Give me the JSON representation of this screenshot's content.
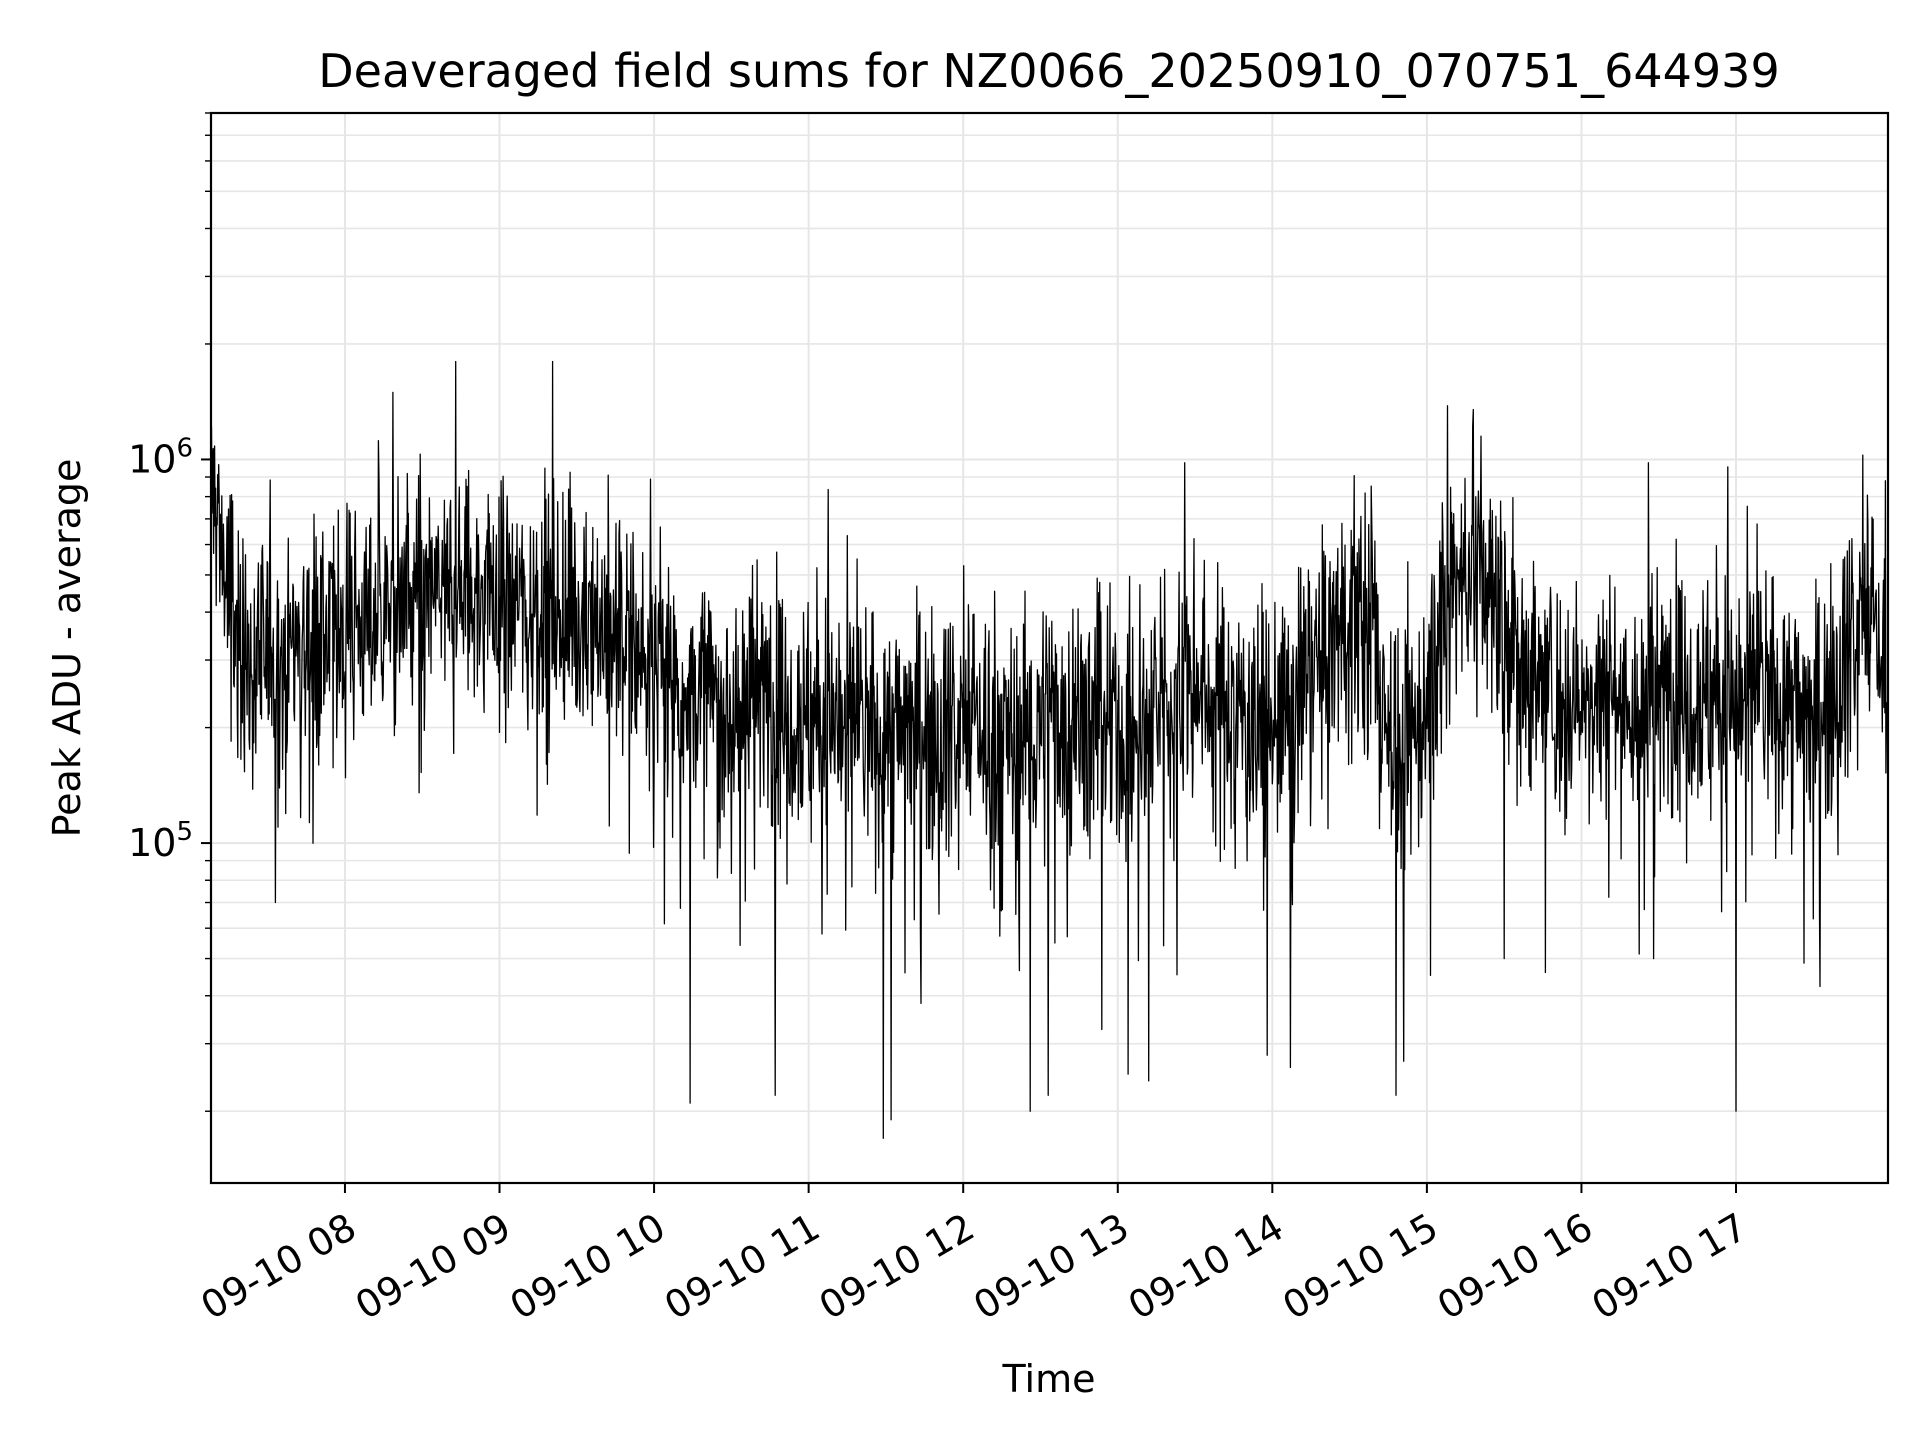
{
  "chart_data": {
    "type": "line",
    "title": "Deaveraged field sums for NZ0066_20250910_070751_644939",
    "xlabel": "Time",
    "ylabel": "Peak ADU - average",
    "yscale": "log",
    "ylim": [
      13000,
      8000000
    ],
    "xlim": [
      "2025-09-10 07:08",
      "2025-09-10 17:59"
    ],
    "grid": true,
    "line_color": "#000000",
    "x_ticks": [
      {
        "x": "2025-09-10 08:00",
        "label": "09-10 08"
      },
      {
        "x": "2025-09-10 09:00",
        "label": "09-10 09"
      },
      {
        "x": "2025-09-10 10:00",
        "label": "09-10 10"
      },
      {
        "x": "2025-09-10 11:00",
        "label": "09-10 11"
      },
      {
        "x": "2025-09-10 12:00",
        "label": "09-10 12"
      },
      {
        "x": "2025-09-10 13:00",
        "label": "09-10 13"
      },
      {
        "x": "2025-09-10 14:00",
        "label": "09-10 14"
      },
      {
        "x": "2025-09-10 15:00",
        "label": "09-10 15"
      },
      {
        "x": "2025-09-10 16:00",
        "label": "09-10 16"
      },
      {
        "x": "2025-09-10 17:00",
        "label": "09-10 17"
      }
    ],
    "y_ticks": [
      {
        "value": 100000,
        "base": "10",
        "exp": "5"
      },
      {
        "value": 1000000,
        "base": "10",
        "exp": "6"
      }
    ],
    "series": [
      {
        "points": [
          [
            "2025-09-10 07:08",
            840000
          ],
          [
            "2025-09-10 07:10",
            760000
          ],
          [
            "2025-09-10 07:12",
            600000
          ],
          [
            "2025-09-10 07:14",
            480000
          ],
          [
            "2025-09-10 07:16",
            420000
          ],
          [
            "2025-09-10 07:18",
            340000
          ],
          [
            "2025-09-10 07:20",
            300000
          ],
          [
            "2025-09-10 07:25",
            280000
          ],
          [
            "2025-09-10 07:30",
            330000
          ],
          [
            "2025-09-10 07:35",
            290000
          ],
          [
            "2025-09-10 07:40",
            350000
          ],
          [
            "2025-09-10 07:45",
            330000
          ],
          [
            "2025-09-10 07:50",
            360000
          ],
          [
            "2025-09-10 07:55",
            320000
          ],
          [
            "2025-09-10 08:00",
            380000
          ],
          [
            "2025-09-10 08:05",
            400000
          ],
          [
            "2025-09-10 08:10",
            370000
          ],
          [
            "2025-09-10 08:15",
            420000
          ],
          [
            "2025-09-10 08:20",
            390000
          ],
          [
            "2025-09-10 08:25",
            440000
          ],
          [
            "2025-09-10 08:30",
            410000
          ],
          [
            "2025-09-10 08:35",
            450000
          ],
          [
            "2025-09-10 08:40",
            430000
          ],
          [
            "2025-09-10 08:45",
            470000
          ],
          [
            "2025-09-10 08:50",
            440000
          ],
          [
            "2025-09-10 08:55",
            460000
          ],
          [
            "2025-09-10 09:00",
            420000
          ],
          [
            "2025-09-10 09:05",
            450000
          ],
          [
            "2025-09-10 09:10",
            410000
          ],
          [
            "2025-09-10 09:15",
            430000
          ],
          [
            "2025-09-10 09:20",
            390000
          ],
          [
            "2025-09-10 09:25",
            420000
          ],
          [
            "2025-09-10 09:30",
            380000
          ],
          [
            "2025-09-10 09:35",
            400000
          ],
          [
            "2025-09-10 09:40",
            360000
          ],
          [
            "2025-09-10 09:45",
            370000
          ],
          [
            "2025-09-10 09:50",
            330000
          ],
          [
            "2025-09-10 09:55",
            310000
          ],
          [
            "2025-09-10 10:00",
            290000
          ],
          [
            "2025-09-10 10:10",
            260000
          ],
          [
            "2025-09-10 10:20",
            240000
          ],
          [
            "2025-09-10 10:30",
            230000
          ],
          [
            "2025-09-10 10:40",
            250000
          ],
          [
            "2025-09-10 10:50",
            230000
          ],
          [
            "2025-09-10 11:00",
            220000
          ],
          [
            "2025-09-10 11:10",
            210000
          ],
          [
            "2025-09-10 11:20",
            200000
          ],
          [
            "2025-09-10 11:30",
            190000
          ],
          [
            "2025-09-10 11:40",
            210000
          ],
          [
            "2025-09-10 11:50",
            200000
          ],
          [
            "2025-09-10 12:00",
            210000
          ],
          [
            "2025-09-10 12:10",
            200000
          ],
          [
            "2025-09-10 12:20",
            190000
          ],
          [
            "2025-09-10 12:30",
            200000
          ],
          [
            "2025-09-10 12:40",
            210000
          ],
          [
            "2025-09-10 12:50",
            200000
          ],
          [
            "2025-09-10 13:00",
            190000
          ],
          [
            "2025-09-10 13:10",
            200000
          ],
          [
            "2025-09-10 13:20",
            240000
          ],
          [
            "2025-09-10 13:30",
            260000
          ],
          [
            "2025-09-10 13:40",
            230000
          ],
          [
            "2025-09-10 13:50",
            220000
          ],
          [
            "2025-09-10 14:00",
            200000
          ],
          [
            "2025-09-10 14:10",
            230000
          ],
          [
            "2025-09-10 14:20",
            290000
          ],
          [
            "2025-09-10 14:30",
            420000
          ],
          [
            "2025-09-10 14:40",
            320000
          ],
          [
            "2025-09-10 14:50",
            150000
          ],
          [
            "2025-09-10 15:00",
            240000
          ],
          [
            "2025-09-10 15:10",
            500000
          ],
          [
            "2025-09-10 15:20",
            520000
          ],
          [
            "2025-09-10 15:30",
            330000
          ],
          [
            "2025-09-10 15:40",
            280000
          ],
          [
            "2025-09-10 15:50",
            240000
          ],
          [
            "2025-09-10 16:00",
            230000
          ],
          [
            "2025-09-10 16:10",
            260000
          ],
          [
            "2025-09-10 16:20",
            220000
          ],
          [
            "2025-09-10 16:30",
            240000
          ],
          [
            "2025-09-10 16:40",
            260000
          ],
          [
            "2025-09-10 16:50",
            250000
          ],
          [
            "2025-09-10 17:00",
            240000
          ],
          [
            "2025-09-10 17:10",
            250000
          ],
          [
            "2025-09-10 17:20",
            230000
          ],
          [
            "2025-09-10 17:30",
            210000
          ],
          [
            "2025-09-10 17:40",
            290000
          ],
          [
            "2025-09-10 17:50",
            420000
          ],
          [
            "2025-09-10 17:59",
            280000
          ]
        ],
        "extremes": [
          [
            "2025-09-10 07:33",
            70000
          ],
          [
            "2025-09-10 08:43",
            1800000
          ],
          [
            "2025-09-10 08:13",
            1120000
          ],
          [
            "2025-09-10 10:14",
            21000
          ],
          [
            "2025-09-10 10:47",
            22000
          ],
          [
            "2025-09-10 11:29",
            17000
          ],
          [
            "2025-09-10 11:32",
            19000
          ],
          [
            "2025-09-10 12:26",
            20000
          ],
          [
            "2025-09-10 12:33",
            22000
          ],
          [
            "2025-09-10 13:04",
            25000
          ],
          [
            "2025-09-10 13:12",
            24000
          ],
          [
            "2025-09-10 13:26",
            980000
          ],
          [
            "2025-09-10 13:58",
            28000
          ],
          [
            "2025-09-10 14:07",
            26000
          ],
          [
            "2025-09-10 14:48",
            22000
          ],
          [
            "2025-09-10 14:51",
            27000
          ],
          [
            "2025-09-10 15:08",
            1380000
          ],
          [
            "2025-09-10 15:18",
            1350000
          ],
          [
            "2025-09-10 15:21",
            1150000
          ],
          [
            "2025-09-10 15:30",
            50000
          ],
          [
            "2025-09-10 15:46",
            46000
          ],
          [
            "2025-09-10 16:26",
            980000
          ],
          [
            "2025-09-10 16:28",
            50000
          ],
          [
            "2025-09-10 17:00",
            20000
          ],
          [
            "2025-09-10 17:58",
            880000
          ]
        ]
      }
    ]
  }
}
